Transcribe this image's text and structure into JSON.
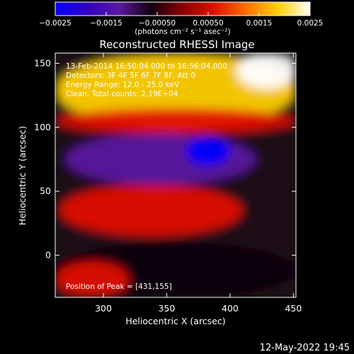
{
  "chart_data": {
    "type": "heatmap",
    "title": "Reconstructed RHESSI Image",
    "xlabel": "Heliocentric X (arcsec)",
    "ylabel": "Heliocentric Y (arcsec)",
    "xlim": [
      262,
      452
    ],
    "ylim": [
      -33,
      158
    ],
    "x_ticks": [
      300,
      350,
      400,
      450
    ],
    "y_ticks": [
      0,
      50,
      100,
      150
    ],
    "colorbar": {
      "range": [
        -0.0025,
        0.0025
      ],
      "tick_values": [
        -0.0025,
        -0.0015,
        -0.0005,
        0.0005,
        0.0015,
        0.0025
      ],
      "tick_labels": [
        "−0.0025",
        "−0.0015",
        "−0.00050",
        "0.00050",
        "0.0015",
        "0.0025"
      ],
      "unit_label": "(photons cm⁻² s⁻¹ asec⁻²)",
      "colors": [
        "#0000ff",
        "#3000c0",
        "#5a1aa0",
        "#100010",
        "#8a0000",
        "#e01000",
        "#ff7000",
        "#ffd000",
        "#ffffff"
      ]
    },
    "annotations": [
      "13-Feb-2014 16:50:04.000 to 16:56:04.000",
      "Detectors: 3F 4F 5F 6F 7F 8F, Att 0",
      "Energy Range: 12.0 - 25.0 keV",
      "Clean. Total counts: 2.19E+04"
    ],
    "peak_label": "Position of Peak = [431,155]",
    "peak": [
      431,
      155
    ],
    "regions": [
      {
        "name": "upper flare emission",
        "x_range": [
          262,
          452
        ],
        "y_range": [
          100,
          158
        ],
        "value": 0.0016
      },
      {
        "name": "brightest core",
        "x_range": [
          405,
          452
        ],
        "y_range": [
          130,
          158
        ],
        "value": 0.0025
      },
      {
        "name": "upper arc emission",
        "x_range": [
          262,
          452
        ],
        "y_range": [
          95,
          115
        ],
        "value": 0.0009
      },
      {
        "name": "central negative band",
        "x_range": [
          270,
          420
        ],
        "y_range": [
          55,
          95
        ],
        "value": -0.0012
      },
      {
        "name": "strongest negative lobe",
        "x_range": [
          365,
          400
        ],
        "y_range": [
          70,
          92
        ],
        "value": -0.0022
      },
      {
        "name": "middle ridge emission",
        "x_range": [
          265,
          410
        ],
        "y_range": [
          15,
          55
        ],
        "value": 0.0006
      },
      {
        "name": "lower negative region",
        "x_range": [
          262,
          452
        ],
        "y_range": [
          -33,
          10
        ],
        "value": -0.0008
      },
      {
        "name": "lower left emission",
        "x_range": [
          262,
          320
        ],
        "y_range": [
          -33,
          -5
        ],
        "value": 0.0007
      }
    ]
  },
  "footer": {
    "timestamp": "12-May-2022 19:45"
  }
}
